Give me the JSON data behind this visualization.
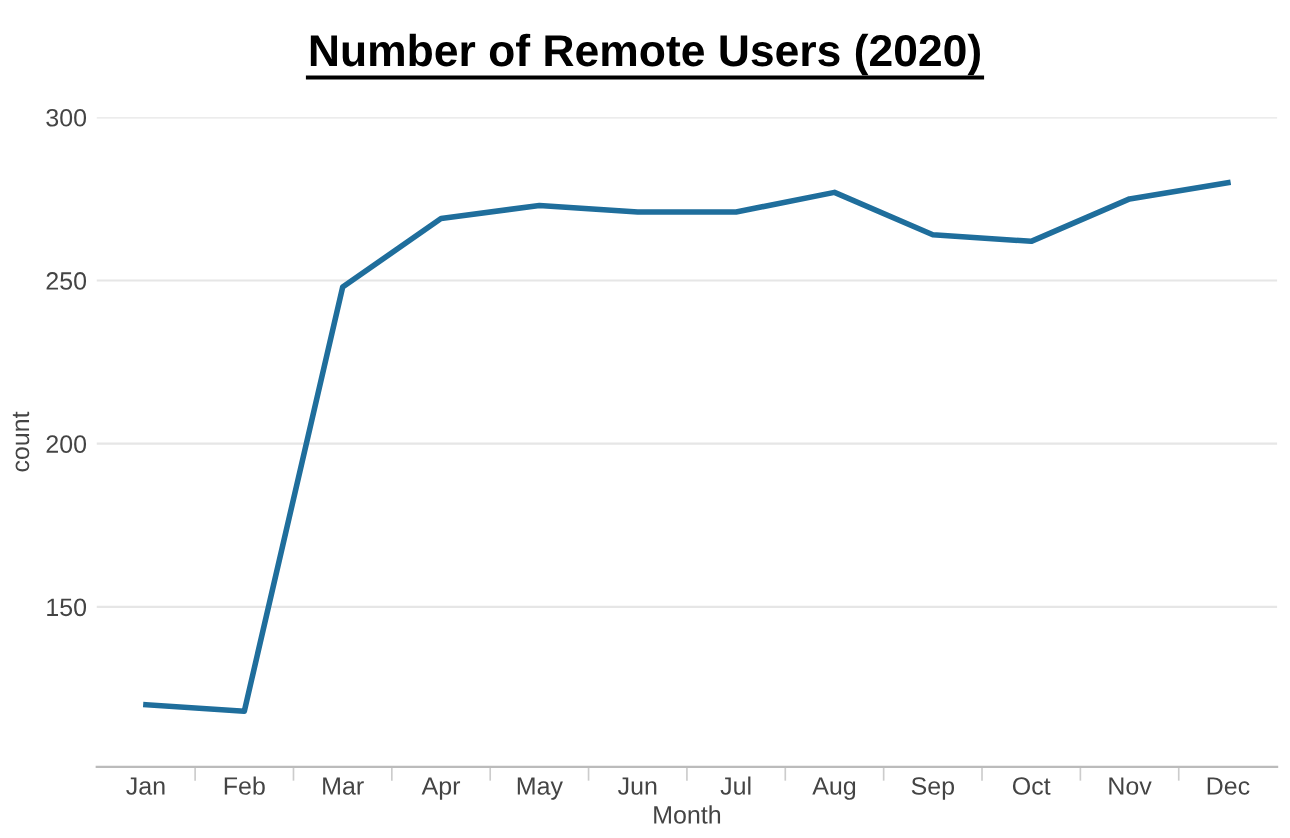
{
  "chart_data": {
    "type": "line",
    "title": "Number of Remote Users (2020)",
    "xlabel": "Month",
    "ylabel": "count",
    "categories": [
      "Jan",
      "Feb",
      "Mar",
      "Apr",
      "May",
      "Jun",
      "Jul",
      "Aug",
      "Sep",
      "Oct",
      "Nov",
      "Dec"
    ],
    "series": [
      {
        "color": "#1f6e9c",
        "values": [
          120,
          118,
          248,
          269,
          273,
          271,
          271,
          277,
          264,
          262,
          275,
          280
        ]
      }
    ],
    "ylim": [
      101,
      300
    ],
    "yticks": [
      150,
      200,
      250,
      300
    ],
    "grid": "y",
    "marker": "none",
    "line_style": "solid"
  }
}
